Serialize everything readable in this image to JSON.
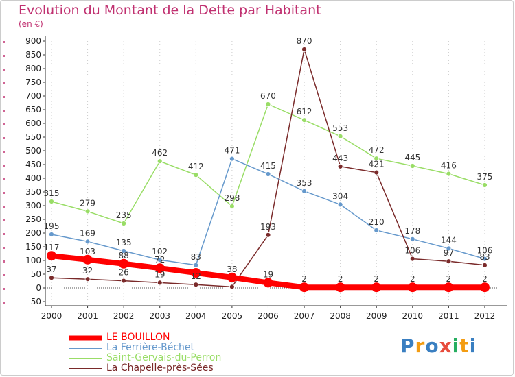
{
  "header": {
    "title": "Evolution du Montant de la Dette par Habitant",
    "subtitle": "(en €)"
  },
  "colors": {
    "title": "#c03070",
    "grid": "#cccccc",
    "axis_marks": "#c03070"
  },
  "chart_data": {
    "type": "line",
    "title": "Evolution du Montant de la Dette par Habitant",
    "subtitle": "(en €)",
    "xlabel": "",
    "ylabel": "",
    "ylim": [
      -50,
      900
    ],
    "y_ticks": [
      -50,
      0,
      50,
      100,
      150,
      200,
      250,
      300,
      350,
      400,
      450,
      500,
      550,
      600,
      650,
      700,
      750,
      800,
      850,
      900
    ],
    "grid": "vertical dotted",
    "legend_position": "bottom-left",
    "categories": [
      "2000",
      "2001",
      "2002",
      "2003",
      "2004",
      "2005",
      "2006",
      "2007",
      "2008",
      "2009",
      "2010",
      "2011",
      "2012"
    ],
    "series": [
      {
        "name": "LE BOUILLON",
        "color": "#ff0000",
        "values": [
          117,
          103,
          88,
          72,
          55,
          38,
          19,
          2,
          2,
          2,
          2,
          2,
          2
        ],
        "labels": [
          "117",
          "103",
          "88",
          "72",
          "",
          "38",
          "19",
          "2",
          "2",
          "2",
          "2",
          "2",
          "2"
        ]
      },
      {
        "name": "La Ferrière-Béchet",
        "color": "#6699cc",
        "values": [
          195,
          169,
          135,
          102,
          83,
          471,
          415,
          353,
          304,
          210,
          178,
          144,
          106
        ],
        "labels": [
          "195",
          "169",
          "135",
          "102",
          "83",
          "471",
          "415",
          "353",
          "304",
          "210",
          "178",
          "144",
          "106"
        ]
      },
      {
        "name": "Saint-Gervais-du-Perron",
        "color": "#99dd66",
        "values": [
          315,
          279,
          235,
          462,
          412,
          298,
          670,
          612,
          553,
          472,
          445,
          416,
          375
        ],
        "labels": [
          "315",
          "279",
          "235",
          "462",
          "412",
          "298",
          "670",
          "612",
          "553",
          "472",
          "445",
          "416",
          "375"
        ]
      },
      {
        "name": "La Chapelle-près-Sées",
        "color": "#7a2a2a",
        "values": [
          37,
          32,
          26,
          19,
          12,
          4,
          193,
          870,
          443,
          421,
          106,
          97,
          83
        ],
        "labels": [
          "37",
          "32",
          "26",
          "19",
          "12",
          "",
          "193",
          "870",
          "443",
          "421",
          "106",
          "97",
          "83"
        ]
      }
    ]
  },
  "legend": {
    "items": [
      {
        "label": "LE BOUILLON",
        "color": "#ff0000"
      },
      {
        "label": "La Ferrière-Béchet",
        "color": "#6699cc"
      },
      {
        "label": "Saint-Gervais-du-Perron",
        "color": "#99dd66"
      },
      {
        "label": "La Chapelle-près-Sées",
        "color": "#7a2a2a"
      }
    ]
  },
  "logo": {
    "text": "Proxiti"
  }
}
